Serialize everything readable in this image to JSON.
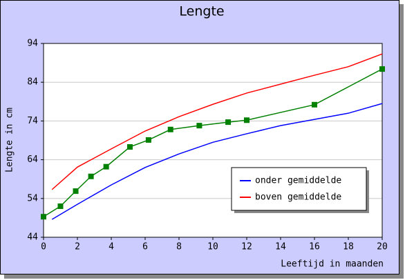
{
  "chart_data": {
    "type": "line",
    "title": "Lengte",
    "x_label": "Leeftijd in maanden",
    "y_label": "Lengte in cm",
    "xlim": [
      0,
      20
    ],
    "xticks": [
      0,
      2,
      4,
      6,
      8,
      10,
      12,
      14,
      16,
      18,
      20
    ],
    "ylim": [
      44,
      94
    ],
    "yticks": [
      44,
      54,
      64,
      74,
      84,
      94
    ],
    "grid": true,
    "legend": "lower right",
    "series": [
      {
        "name": "onder gemiddelde",
        "color": "#0000ff",
        "x": [
          0.5,
          2,
          4,
          6,
          8,
          10,
          12,
          14,
          16,
          18,
          20
        ],
        "values": [
          48.6,
          52.5,
          57.5,
          62,
          65.5,
          68.5,
          70.7,
          72.8,
          74.4,
          76,
          78.5
        ]
      },
      {
        "name": "boven gemiddelde",
        "color": "#ff0000",
        "x": [
          0.5,
          2,
          4,
          6,
          8,
          10,
          12,
          14,
          16,
          18,
          20
        ],
        "values": [
          56.3,
          62.1,
          66.8,
          71.4,
          75.1,
          78.3,
          81.2,
          83.5,
          85.8,
          88,
          91.3
        ]
      },
      {
        "color": "#008000",
        "marker": "square",
        "x": [
          0,
          1,
          1.9,
          2.8,
          3.7,
          5.1,
          6.2,
          7.5,
          9.2,
          10.9,
          12,
          16,
          20
        ],
        "values": [
          49.3,
          52,
          55.9,
          59.7,
          62.2,
          67.3,
          69.1,
          71.8,
          72.8,
          73.7,
          74.2,
          78.2,
          87.4
        ]
      }
    ]
  }
}
